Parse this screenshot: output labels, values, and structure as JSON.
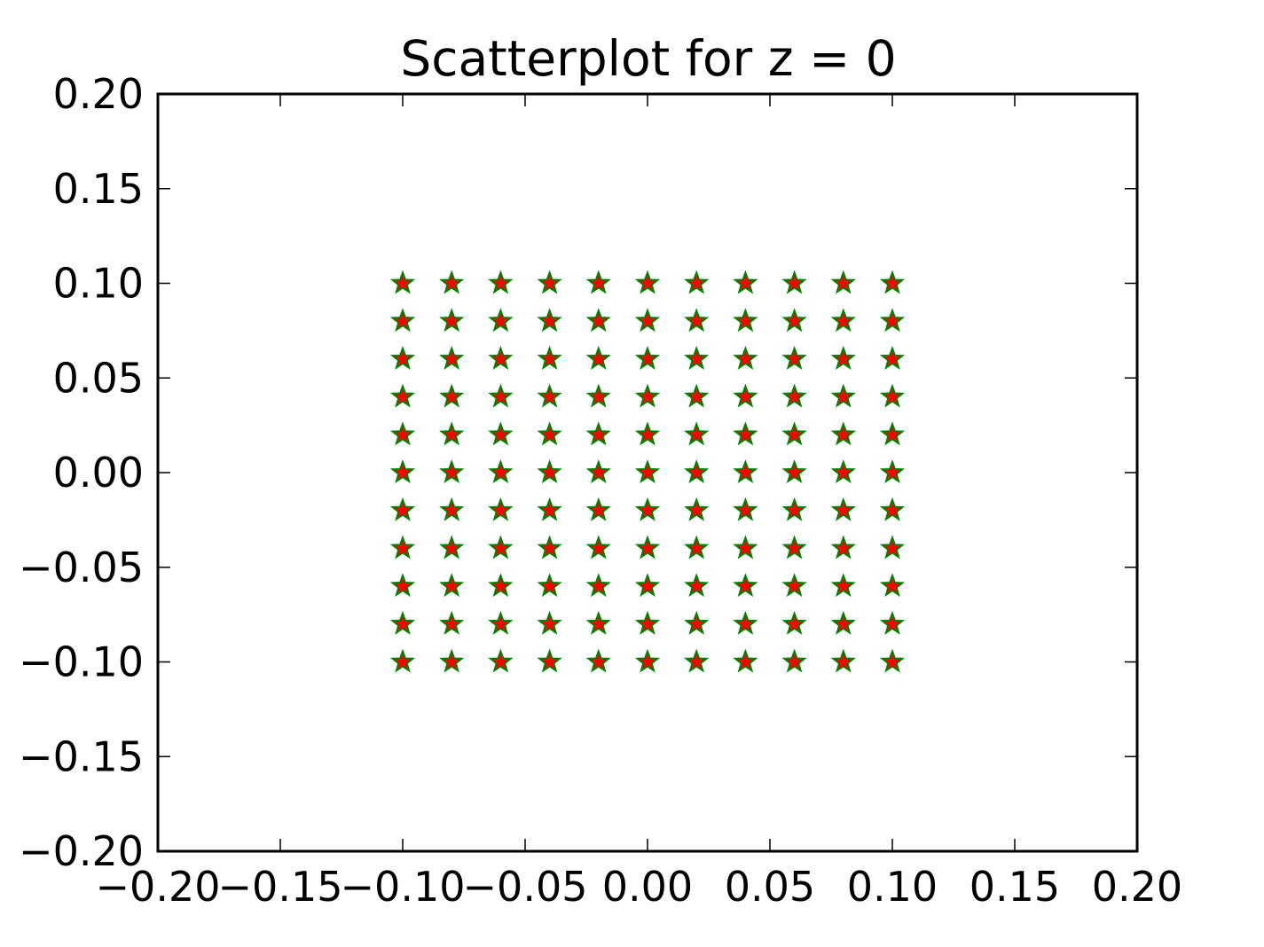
{
  "chart_data": {
    "type": "scatter",
    "title": "Scatterplot for z = 0",
    "xlabel": "",
    "ylabel": "",
    "xlim": [
      -0.2,
      0.2
    ],
    "ylim": [
      -0.2,
      0.2
    ],
    "grid": false,
    "legend": "none",
    "marker": "star",
    "marker_fill": "#ff0000",
    "marker_edge": "#008000",
    "xticks": [
      -0.2,
      -0.15,
      -0.1,
      -0.05,
      0.0,
      0.05,
      0.1,
      0.15,
      0.2
    ],
    "xtick_labels": [
      "−0.20",
      "−0.15",
      "−0.10",
      "−0.05",
      "0.00",
      "0.05",
      "0.10",
      "0.15",
      "0.20"
    ],
    "yticks": [
      -0.2,
      -0.15,
      -0.1,
      -0.05,
      0.0,
      0.05,
      0.1,
      0.15,
      0.2
    ],
    "ytick_labels": [
      "−0.20",
      "−0.15",
      "−0.10",
      "−0.05",
      "0.00",
      "0.05",
      "0.10",
      "0.15",
      "0.20"
    ],
    "grid_x": [
      -0.1,
      -0.08,
      -0.06,
      -0.04,
      -0.02,
      0.0,
      0.02,
      0.04,
      0.06,
      0.08,
      0.1
    ],
    "grid_y": [
      -0.1,
      -0.08,
      -0.06,
      -0.04,
      -0.02,
      0.0,
      0.02,
      0.04,
      0.06,
      0.08,
      0.1
    ]
  }
}
